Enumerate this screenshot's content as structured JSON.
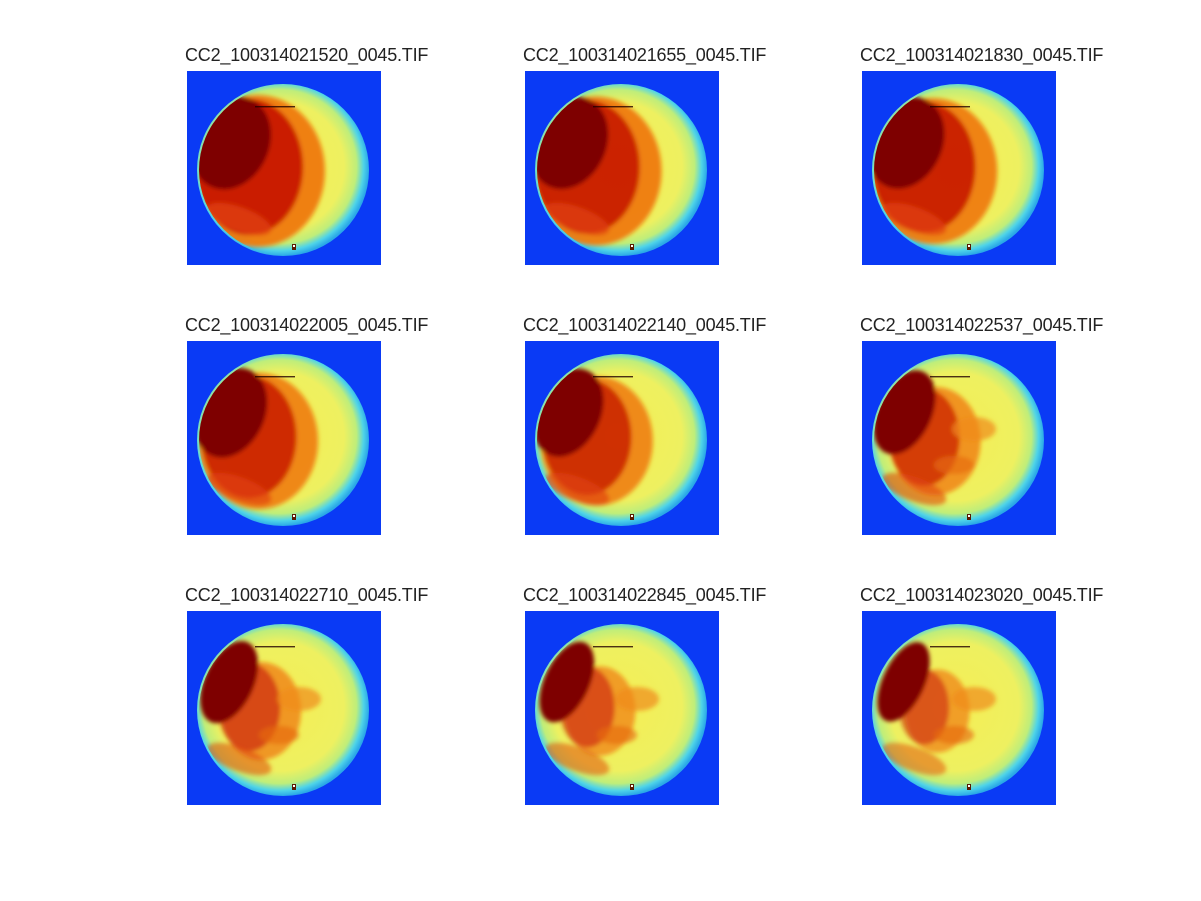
{
  "figure": {
    "background": "#ffffff",
    "panels": [
      {
        "title": "CC2_100314021520_0045.TIF",
        "hot_fraction": 1.0
      },
      {
        "title": "CC2_100314021655_0045.TIF",
        "hot_fraction": 0.97
      },
      {
        "title": "CC2_100314021830_0045.TIF",
        "hot_fraction": 0.94
      },
      {
        "title": "CC2_100314022005_0045.TIF",
        "hot_fraction": 0.85
      },
      {
        "title": "CC2_100314022140_0045.TIF",
        "hot_fraction": 0.78
      },
      {
        "title": "CC2_100314022537_0045.TIF",
        "hot_fraction": 0.58
      },
      {
        "title": "CC2_100314022710_0045.TIF",
        "hot_fraction": 0.48
      },
      {
        "title": "CC2_100314022845_0045.TIF",
        "hot_fraction": 0.4
      },
      {
        "title": "CC2_100314023020_0045.TIF",
        "hot_fraction": 0.34
      }
    ]
  },
  "colors": {
    "background_blue": "#0a3af5",
    "rim_cyan": "#4fd4e8",
    "disk_yellow": "#f5ee55",
    "hot_red": "#c81a05",
    "hottest_darkred": "#7e0000"
  }
}
